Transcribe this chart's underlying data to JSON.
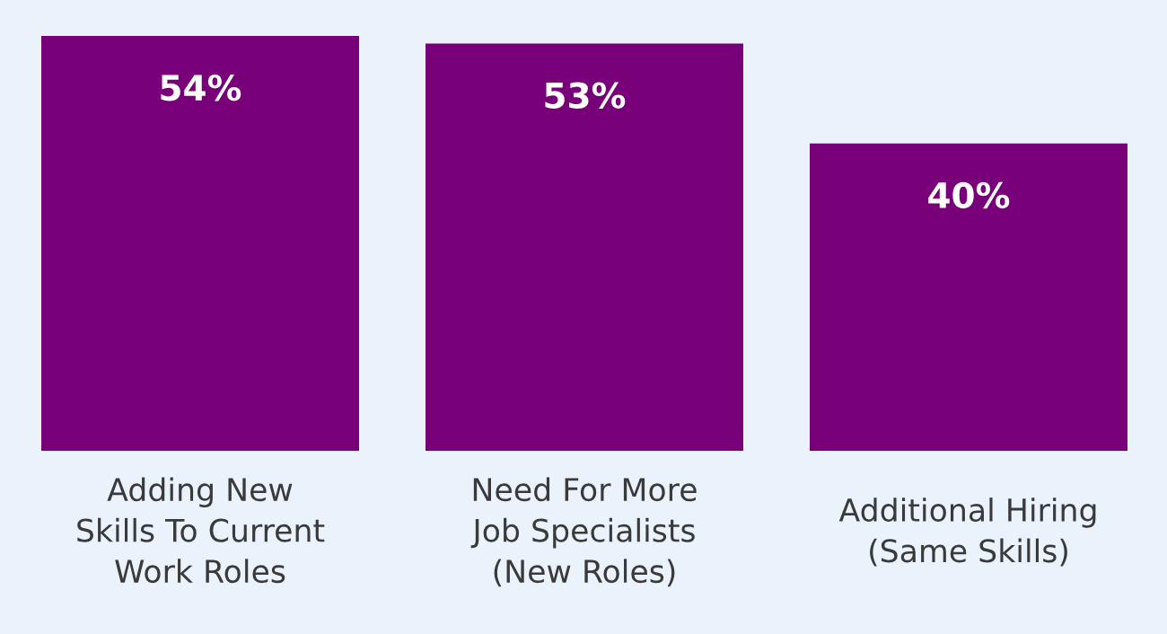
{
  "chart_data": {
    "type": "bar",
    "categories": [
      "Adding New\nSkills To Current\nWork Roles",
      "Need For More\nJob Specialists\n(New Roles)",
      "Additional Hiring\n(Same Skills)"
    ],
    "values": [
      54,
      53,
      40
    ],
    "color": "#780078",
    "value_labels": [
      "54%",
      "53%",
      "40%"
    ],
    "grid": false,
    "legend": false
  }
}
